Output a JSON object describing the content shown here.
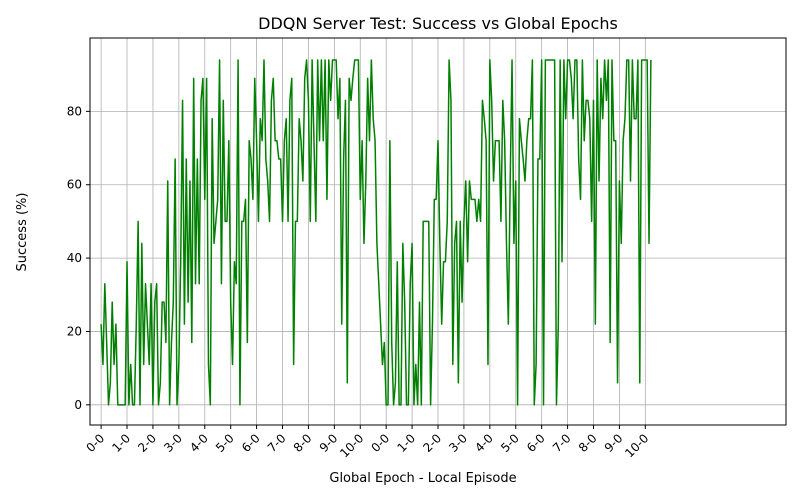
{
  "chart_data": {
    "type": "line",
    "title": "DDQN Server Test: Success vs Global Epochs",
    "xlabel": "Global Epoch - Local Episode",
    "ylabel": "Success (%)",
    "ylim": [
      -5.5,
      100
    ],
    "yticks": [
      0,
      20,
      40,
      60,
      80
    ],
    "grid": true,
    "line_color": "#008000",
    "xlim": [
      -6,
      370
    ],
    "xticks": [
      {
        "pos": 0,
        "label": "0-0"
      },
      {
        "pos": 14,
        "label": "1-0"
      },
      {
        "pos": 28,
        "label": "2-0"
      },
      {
        "pos": 42,
        "label": "3-0"
      },
      {
        "pos": 56,
        "label": "4-0"
      },
      {
        "pos": 70,
        "label": "5-0"
      },
      {
        "pos": 84,
        "label": "6-0"
      },
      {
        "pos": 98,
        "label": "7-0"
      },
      {
        "pos": 112,
        "label": "8-0"
      },
      {
        "pos": 126,
        "label": "9-0"
      },
      {
        "pos": 140,
        "label": "10-0"
      },
      {
        "pos": 154,
        "label": "0-0"
      },
      {
        "pos": 168,
        "label": "1-0"
      },
      {
        "pos": 182,
        "label": "2-0"
      },
      {
        "pos": 196,
        "label": "3-0"
      },
      {
        "pos": 210,
        "label": "4-0"
      },
      {
        "pos": 224,
        "label": "5-0"
      },
      {
        "pos": 238,
        "label": "6-0"
      },
      {
        "pos": 252,
        "label": "7-0"
      },
      {
        "pos": 266,
        "label": "8-0"
      },
      {
        "pos": 280,
        "label": "9-0"
      },
      {
        "pos": 294,
        "label": "10-0"
      }
    ],
    "series": [
      {
        "values": [
          22,
          11,
          33,
          17,
          0,
          6,
          28,
          11,
          22,
          0,
          0,
          0,
          0,
          0,
          39,
          0,
          11,
          0,
          0,
          22,
          50,
          0,
          44,
          11,
          33,
          22,
          11,
          33,
          0,
          28,
          33,
          0,
          6,
          28,
          28,
          17,
          61,
          0,
          17,
          28,
          67,
          0,
          11,
          39,
          83,
          22,
          67,
          28,
          61,
          17,
          89,
          33,
          67,
          33,
          83,
          89,
          56,
          89,
          11,
          0,
          78,
          44,
          50,
          56,
          94,
          33,
          83,
          50,
          50,
          72,
          28,
          11,
          39,
          33,
          94,
          0,
          50,
          50,
          56,
          17,
          72,
          67,
          56,
          89,
          72,
          50,
          78,
          72,
          94,
          67,
          61,
          50,
          83,
          89,
          72,
          72,
          67,
          67,
          50,
          72,
          78,
          50,
          83,
          89,
          11,
          50,
          50,
          78,
          72,
          61,
          89,
          94,
          83,
          50,
          94,
          72,
          50,
          94,
          72,
          94,
          72,
          94,
          56,
          94,
          83,
          94,
          94,
          94,
          78,
          89,
          22,
          67,
          83,
          6,
          89,
          83,
          89,
          94,
          94,
          94,
          56,
          72,
          44,
          61,
          89,
          72,
          94,
          78,
          72,
          44,
          33,
          22,
          11,
          17,
          0,
          0,
          72,
          17,
          0,
          6,
          39,
          0,
          0,
          44,
          28,
          0,
          0,
          33,
          44,
          0,
          11,
          0,
          28,
          0,
          50,
          50,
          50,
          50,
          0,
          22,
          56,
          56,
          72,
          44,
          22,
          39,
          39,
          50,
          94,
          83,
          11,
          44,
          50,
          6,
          50,
          28,
          50,
          61,
          39,
          61,
          56,
          56,
          56,
          50,
          56,
          50,
          83,
          78,
          72,
          11,
          94,
          83,
          61,
          72,
          72,
          72,
          50,
          83,
          72,
          44,
          22,
          61,
          94,
          44,
          61,
          0,
          78,
          72,
          67,
          61,
          72,
          78,
          78,
          94,
          0,
          11,
          67,
          67,
          94,
          0,
          94,
          94,
          94,
          94,
          94,
          94,
          0,
          22,
          94,
          39,
          94,
          78,
          94,
          94,
          89,
          78,
          94,
          94,
          67,
          56,
          94,
          72,
          83,
          83,
          78,
          50,
          83,
          22,
          94,
          61,
          89,
          78,
          94,
          83,
          94,
          17,
          94,
          72,
          72,
          6,
          61,
          44,
          72,
          78,
          94,
          94,
          61,
          94,
          78,
          78,
          94,
          6,
          94,
          94,
          94,
          94,
          44,
          94
        ]
      }
    ]
  }
}
